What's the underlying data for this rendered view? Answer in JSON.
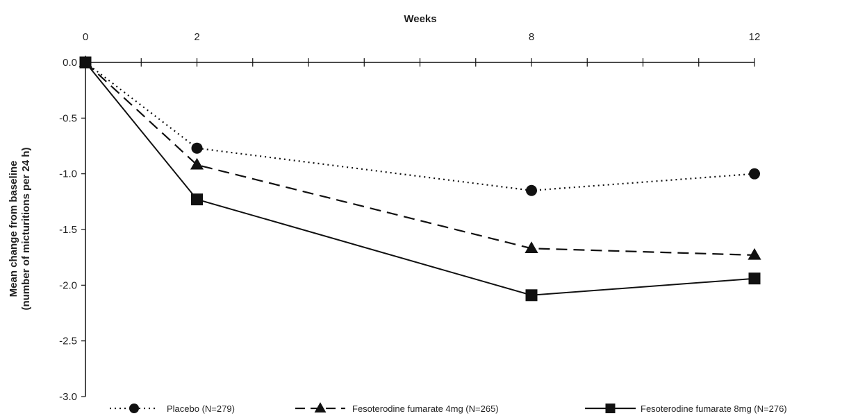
{
  "chart_data": {
    "type": "line",
    "title": "",
    "xlabel": "Weeks",
    "ylabel_line1": "Mean change from baseline",
    "ylabel_line2": "(number of micturitions per 24 h)",
    "xlim": [
      0,
      12
    ],
    "ylim": [
      -3.0,
      0.0
    ],
    "x_ticks": [
      0,
      2,
      8,
      12
    ],
    "x_tick_labels": [
      "0",
      "2",
      "8",
      "12"
    ],
    "y_ticks": [
      0.0,
      -0.5,
      -1.0,
      -1.5,
      -2.0,
      -2.5,
      -3.0
    ],
    "y_tick_labels": [
      "0.0",
      "-0.5",
      "-1.0",
      "-1.5",
      "-2.0",
      "-2.5",
      "-3.0"
    ],
    "grid": false,
    "x_axis_position": "top",
    "legend_position": "bottom",
    "series": [
      {
        "name": "Placebo (N=279)",
        "x": [
          0,
          2,
          8,
          12
        ],
        "y": [
          0.0,
          -0.77,
          -1.15,
          -1.0
        ],
        "line_style": "dotted",
        "marker": "circle",
        "color": "#111111"
      },
      {
        "name": "Fesoterodine fumarate 4mg (N=265)",
        "x": [
          0,
          2,
          8,
          12
        ],
        "y": [
          0.0,
          -0.92,
          -1.67,
          -1.73
        ],
        "line_style": "dashed",
        "marker": "triangle",
        "color": "#111111"
      },
      {
        "name": "Fesoterodine fumarate 8mg (N=276)",
        "x": [
          0,
          2,
          8,
          12
        ],
        "y": [
          0.0,
          -1.23,
          -2.09,
          -1.94
        ],
        "line_style": "solid",
        "marker": "square",
        "color": "#111111"
      }
    ]
  }
}
